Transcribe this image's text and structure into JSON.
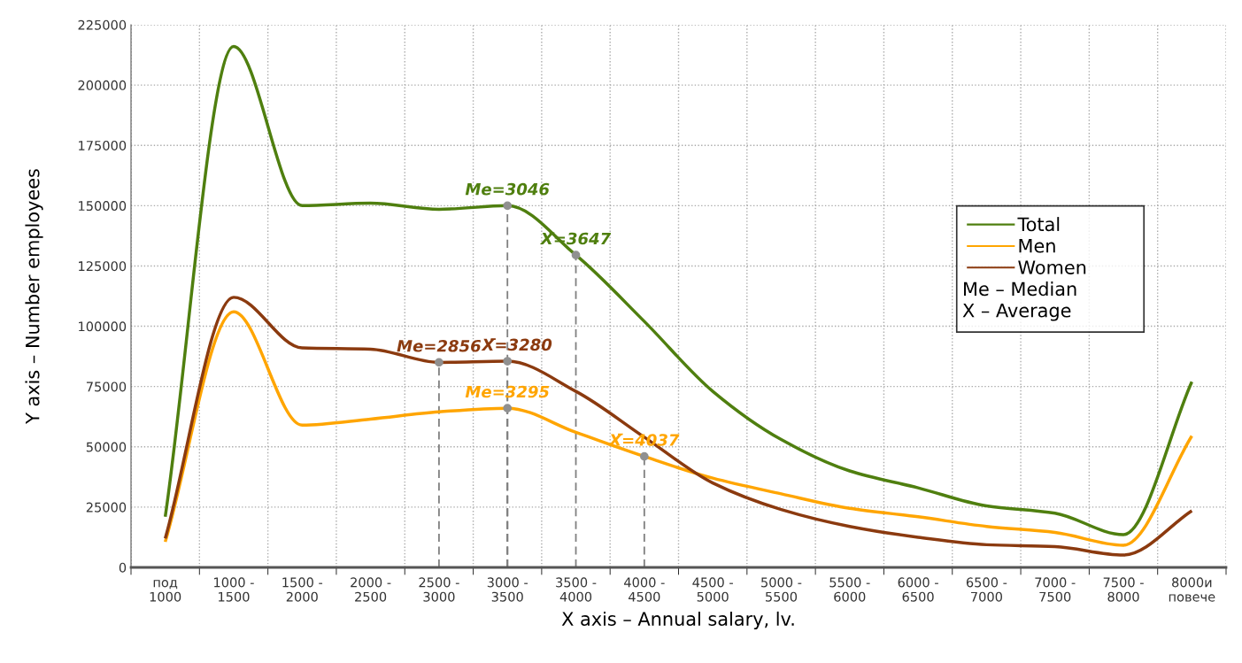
{
  "chart_data": {
    "type": "line",
    "xlabel": "X axis – Annual salary, lv.",
    "ylabel": "Y axis – Number employees",
    "categories": [
      "под\n1000",
      "1000 -\n1500",
      "1500 -\n2000",
      "2000 -\n2500",
      "2500 -\n3000",
      "3000 -\n3500",
      "3500 -\n4000",
      "4000 -\n4500",
      "4500 -\n5000",
      "5000 -\n5500",
      "5500 -\n6000",
      "6000 -\n6500",
      "6500 -\n7000",
      "7000 -\n7500",
      "7500 -\n8000",
      "8000и\nповече"
    ],
    "series": [
      {
        "name": "Total",
        "color": "#4f7f0f",
        "values": [
          21000,
          216000,
          150000,
          151000,
          148500,
          150000,
          129500,
          102000,
          73000,
          53000,
          40000,
          33000,
          25500,
          22500,
          13600,
          77000
        ]
      },
      {
        "name": "Men",
        "color": "#ffa500",
        "values": [
          10600,
          106000,
          59000,
          61500,
          64500,
          66000,
          56000,
          46000,
          37000,
          30500,
          24500,
          21000,
          17000,
          14500,
          9200,
          54500
        ]
      },
      {
        "name": "Women",
        "color": "#8b3a0f",
        "values": [
          12000,
          112000,
          91000,
          90500,
          85000,
          85500,
          73000,
          54000,
          35000,
          24000,
          17000,
          12500,
          9400,
          8600,
          5100,
          23500
        ]
      }
    ],
    "annotations": [
      {
        "text": "Me=3046",
        "x": "3000 -\n3500",
        "y": 150000
      },
      {
        "text": "X̄=3647",
        "x": "3500 -\n4000",
        "y": 129500
      },
      {
        "text": "Me=2856",
        "x": "2500 -\n3000",
        "y": 85000
      },
      {
        "text": "X̄=3280",
        "x": "3000 -\n3500",
        "y": 85500
      },
      {
        "text": "Me=3295",
        "x": "3000 -\n3500",
        "y": 66000
      },
      {
        "text": "X̄=4037",
        "x": "4000 -\n4500",
        "y": 46000
      },
      "Me – Median",
      "X – Average"
    ],
    "ylim": [
      0,
      225000
    ],
    "yticks": [
      0,
      25000,
      50000,
      75000,
      100000,
      125000,
      150000,
      175000,
      200000,
      225000
    ],
    "grid": true,
    "legend": "right",
    "marker": "none",
    "line_style": "solid"
  }
}
